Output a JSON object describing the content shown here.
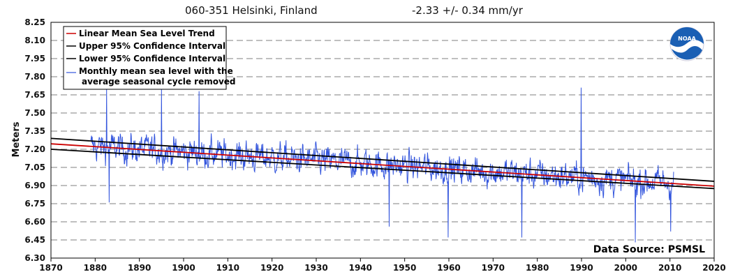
{
  "colors": {
    "trend": "#cc0000",
    "confidence": "#000000",
    "monthly": "#3355dd",
    "grid": "#999999",
    "noaa_blue": "#1a5fb4"
  },
  "chart_data": {
    "type": "line",
    "title": "060-351 Helsinki, Finland",
    "trend_text": "-2.33 +/-  0.34 mm/yr",
    "xlabel": "",
    "ylabel": "Meters",
    "xlim": [
      1870,
      2020
    ],
    "ylim": [
      6.3,
      8.25
    ],
    "x_ticks": [
      "1870",
      "1880",
      "1890",
      "1900",
      "1910",
      "1920",
      "1930",
      "1940",
      "1950",
      "1960",
      "1970",
      "1980",
      "1990",
      "2000",
      "2010",
      "2020"
    ],
    "y_ticks": [
      "8.25",
      "8.10",
      "7.95",
      "7.80",
      "7.65",
      "7.50",
      "7.35",
      "7.20",
      "7.05",
      "6.90",
      "6.75",
      "6.60",
      "6.45",
      "6.30"
    ],
    "grid": "horizontal dashed",
    "legend_placement": "top-left",
    "source": "Data Source: PSMSL",
    "logo_text": "NOAA",
    "series": [
      {
        "name": "Linear Mean Sea Level Trend",
        "x": [
          1870,
          2020
        ],
        "y": [
          7.245,
          6.895
        ]
      },
      {
        "name": "Upper 95% Confidence Interval",
        "x": [
          1870,
          2020
        ],
        "y": [
          7.29,
          6.935
        ]
      },
      {
        "name": "Lower 95% Confidence Interval",
        "x": [
          1870,
          2020
        ],
        "y": [
          7.2,
          6.875
        ]
      },
      {
        "name": "Monthly mean sea level with the average seasonal cycle removed",
        "start": 1879,
        "end": 2010.9,
        "trend_start": 7.225,
        "trend_slope_per_year": -0.00233,
        "notable_points": [
          {
            "x": 1882.6,
            "y": 7.7
          },
          {
            "x": 1883.2,
            "y": 6.76
          },
          {
            "x": 1895.0,
            "y": 7.7
          },
          {
            "x": 1903.5,
            "y": 7.68
          },
          {
            "x": 1946.5,
            "y": 6.56
          },
          {
            "x": 1959.8,
            "y": 6.47
          },
          {
            "x": 1976.5,
            "y": 6.47
          },
          {
            "x": 1989.9,
            "y": 7.71
          },
          {
            "x": 2002.2,
            "y": 6.43
          },
          {
            "x": 2010.2,
            "y": 6.52
          }
        ]
      }
    ],
    "legend": [
      "Linear Mean Sea Level Trend",
      "Upper 95% Confidence Interval",
      "Lower 95% Confidence Interval",
      "Monthly mean sea level with the",
      "average seasonal cycle removed"
    ]
  }
}
